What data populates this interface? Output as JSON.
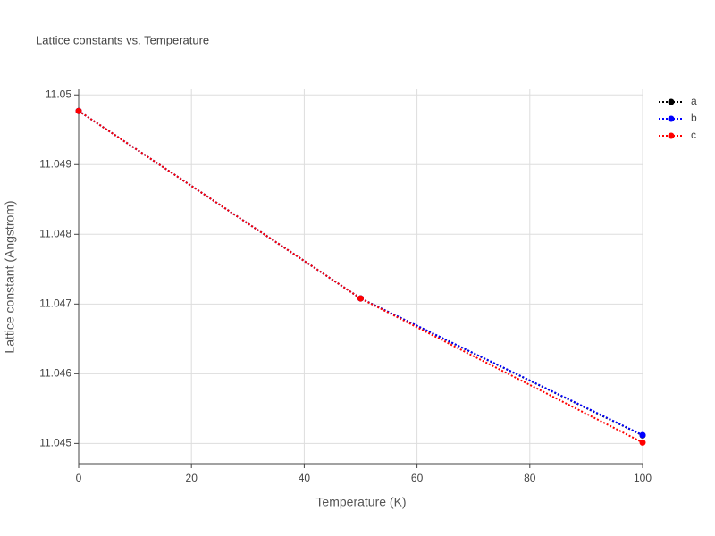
{
  "chart_data": {
    "type": "line",
    "title": "Lattice constants vs. Temperature",
    "x_label": "Temperature (K)",
    "y_label": "Lattice constant (Angstrom)",
    "x": [
      0,
      50,
      100
    ],
    "series": [
      {
        "name": "a",
        "color": "#000000",
        "values": [
          11.04977,
          11.04708,
          11.045115
        ]
      },
      {
        "name": "b",
        "color": "#0000ff",
        "values": [
          11.04977,
          11.04708,
          11.04512
        ]
      },
      {
        "name": "c",
        "color": "#ff0000",
        "values": [
          11.04977,
          11.04708,
          11.045013
        ]
      }
    ],
    "xlim": [
      0,
      100
    ],
    "xticks": [
      0,
      20,
      40,
      60,
      80,
      100
    ],
    "ylim": [
      11.04471,
      11.05008
    ],
    "yticks": [
      11.045,
      11.046,
      11.047,
      11.048,
      11.049,
      11.05
    ],
    "grid": true,
    "legend": "top-right"
  }
}
